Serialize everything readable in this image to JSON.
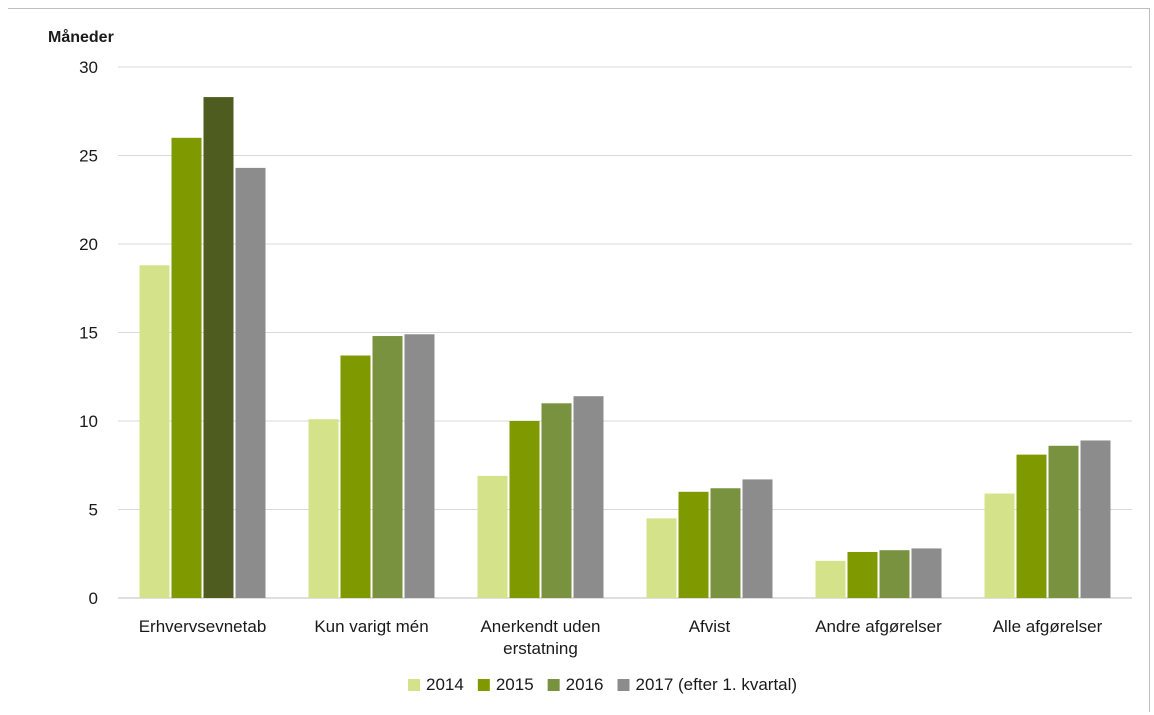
{
  "chart_data": {
    "type": "bar",
    "ylabel": "Måneder",
    "ylim": [
      0,
      30
    ],
    "yticks": [
      "0",
      "5",
      "10",
      "15",
      "20",
      "25",
      "30"
    ],
    "categories": [
      [
        "Erhvervsevnetab"
      ],
      [
        "Kun varigt mén"
      ],
      [
        "Anerkendt uden",
        "erstatning"
      ],
      [
        "Afvist"
      ],
      [
        "Andre afgørelser"
      ],
      [
        "Alle afgørelser"
      ]
    ],
    "series": [
      {
        "name": "2014",
        "color": "#d4e38a",
        "values": [
          18.8,
          10.1,
          6.9,
          4.5,
          2.1,
          5.9
        ]
      },
      {
        "name": "2015",
        "color": "#7f9a00",
        "values": [
          26.0,
          13.7,
          10.0,
          6.0,
          2.6,
          8.1
        ]
      },
      {
        "name": "2016",
        "color": "#78923f",
        "values": [
          28.3,
          14.8,
          11.0,
          6.2,
          2.7,
          8.6
        ]
      },
      {
        "name": "2017 (efter 1. kvartal)",
        "color": "#8c8c8c",
        "values": [
          24.3,
          14.9,
          11.4,
          6.7,
          2.8,
          8.9
        ]
      }
    ],
    "highlight": {
      "series": 2,
      "category": 0,
      "color": "#4e5c1f"
    },
    "grid": true,
    "legend": "bottom"
  }
}
